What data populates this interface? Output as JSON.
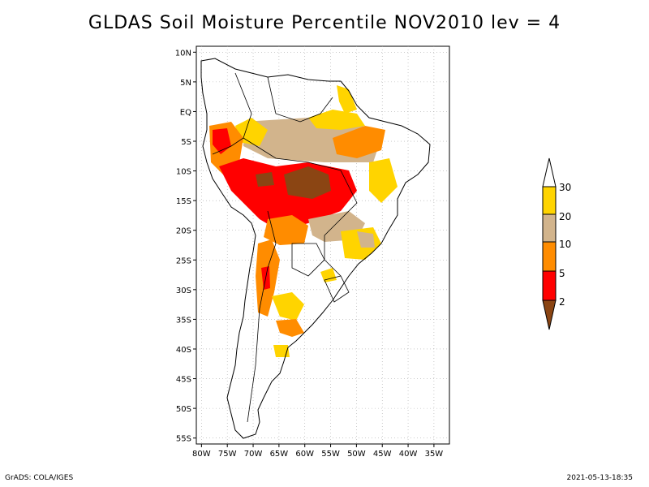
{
  "title": "GLDAS Soil Moisture Percentile NOV2010 lev = 4",
  "footer_left": "GrADS: COLA/IGES",
  "footer_right": "2021-05-13-18:35",
  "map": {
    "lon_range": [
      -81,
      -32
    ],
    "lat_range": [
      -56,
      11
    ],
    "lon_ticks": [
      "80W",
      "75W",
      "70W",
      "65W",
      "60W",
      "55W",
      "50W",
      "45W",
      "40W",
      "35W"
    ],
    "lat_ticks": [
      "10N",
      "5N",
      "EQ",
      "5S",
      "10S",
      "15S",
      "20S",
      "25S",
      "30S",
      "35S",
      "40S",
      "45S",
      "50S",
      "55S"
    ],
    "grid": true
  },
  "legend": {
    "labels": [
      "30",
      "20",
      "10",
      "5",
      "2"
    ],
    "colors": {
      "gt30": "#ffffff",
      "20_30": "#ffd400",
      "10_20": "#d2b48c",
      "5_10": "#ff8c00",
      "2_5": "#ff0000",
      "lt2": "#8b4513"
    }
  }
}
